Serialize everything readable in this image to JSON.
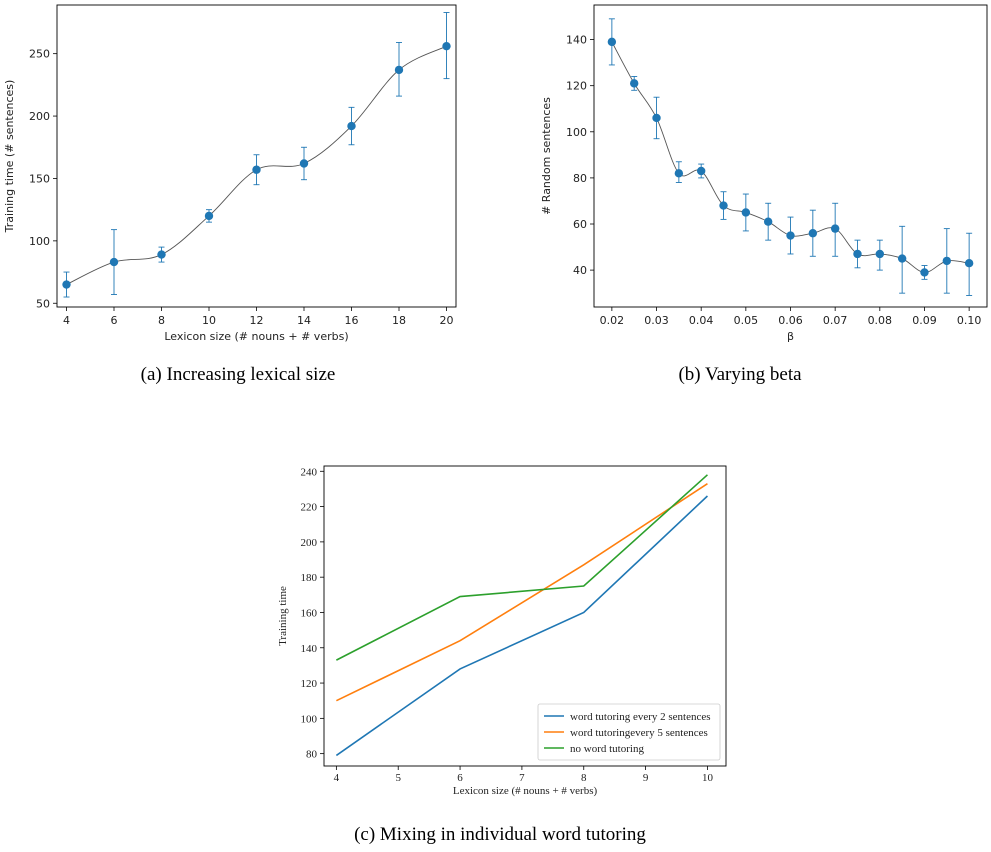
{
  "captions": {
    "a": "(a) Increasing lexical size",
    "b": "(b) Varying beta",
    "c": "(c) Mixing in individual word tutoring"
  },
  "chart_data": [
    {
      "id": "a",
      "type": "scatter",
      "xlabel": "Lexicon size (# nouns + # verbs)",
      "ylabel": "Training time (# sentences)",
      "xlim": [
        3.6,
        20.4
      ],
      "ylim": [
        47,
        289
      ],
      "xticks": [
        4,
        6,
        8,
        10,
        12,
        14,
        16,
        18,
        20
      ],
      "yticks": [
        50,
        100,
        150,
        200,
        250
      ],
      "x": [
        4,
        6,
        8,
        10,
        12,
        14,
        16,
        18,
        20
      ],
      "y": [
        65,
        83,
        89,
        120,
        157,
        162,
        192,
        237,
        256
      ],
      "err_low": [
        10,
        26,
        6,
        5,
        12,
        13,
        15,
        21,
        26
      ],
      "err_high": [
        10,
        26,
        6,
        5,
        12,
        13,
        15,
        22,
        27
      ],
      "colors": {
        "point": "#1f77b4",
        "curve": "#555555"
      }
    },
    {
      "id": "b",
      "type": "scatter",
      "xlabel": "β",
      "ylabel": "# Random sentences",
      "xlim": [
        0.016,
        0.104
      ],
      "ylim": [
        24,
        155
      ],
      "xticks": [
        0.02,
        0.03,
        0.04,
        0.05,
        0.06,
        0.07,
        0.08,
        0.09,
        0.1
      ],
      "xticklabels": [
        "0.02",
        "0.03",
        "0.04",
        "0.05",
        "0.06",
        "0.07",
        "0.08",
        "0.09",
        "0.10"
      ],
      "yticks": [
        40,
        60,
        80,
        100,
        120,
        140
      ],
      "x": [
        0.02,
        0.025,
        0.03,
        0.035,
        0.04,
        0.045,
        0.05,
        0.055,
        0.06,
        0.065,
        0.07,
        0.075,
        0.08,
        0.085,
        0.09,
        0.095,
        0.1
      ],
      "y": [
        139,
        121,
        106,
        82,
        83,
        68,
        65,
        61,
        55,
        56,
        58,
        47,
        47,
        45,
        39,
        44,
        43
      ],
      "err_low": [
        10,
        3,
        9,
        4,
        3,
        6,
        8,
        8,
        8,
        10,
        12,
        6,
        7,
        15,
        3,
        14,
        14
      ],
      "err_high": [
        10,
        3,
        9,
        5,
        3,
        6,
        8,
        8,
        8,
        10,
        11,
        6,
        6,
        14,
        3,
        14,
        13
      ],
      "colors": {
        "point": "#1f77b4",
        "curve": "#555555"
      }
    },
    {
      "id": "c",
      "type": "line",
      "xlabel": "Lexicon size (# nouns + # verbs)",
      "ylabel": "Training time",
      "xlim": [
        3.8,
        10.3
      ],
      "ylim": [
        73,
        243
      ],
      "xticks": [
        4,
        5,
        6,
        7,
        8,
        9,
        10
      ],
      "yticks": [
        80,
        100,
        120,
        140,
        160,
        180,
        200,
        220,
        240
      ],
      "x": [
        4,
        6,
        8,
        10
      ],
      "legend_position": "lower-right",
      "series": [
        {
          "name": "word tutoring every 2 sentences",
          "values": [
            79,
            128,
            160,
            226
          ],
          "color": "#1f77b4"
        },
        {
          "name": "word tutoringevery 5 sentences",
          "values": [
            110,
            144,
            187,
            233
          ],
          "color": "#ff7f0e"
        },
        {
          "name": "no word tutoring",
          "values": [
            133,
            169,
            175,
            238
          ],
          "color": "#2ca02c"
        }
      ]
    }
  ]
}
